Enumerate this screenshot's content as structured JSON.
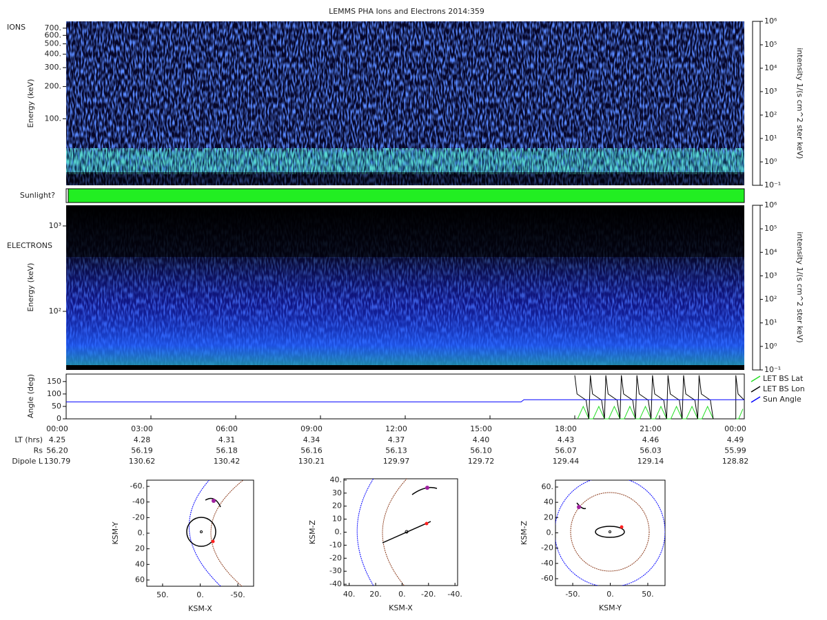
{
  "title": "LEMMS PHA Ions and Electrons  2014:359",
  "time_axis": {
    "xlim": [
      0,
      24
    ],
    "xticks": [
      {
        "value": 0,
        "label": "00:00"
      },
      {
        "value": 3,
        "label": "03:00"
      },
      {
        "value": 6,
        "label": "06:00"
      },
      {
        "value": 9,
        "label": "09:00"
      },
      {
        "value": 12,
        "label": "12:00"
      },
      {
        "value": 15,
        "label": "15:00"
      },
      {
        "value": 18,
        "label": "18:00"
      },
      {
        "value": 21,
        "label": "21:00"
      },
      {
        "value": 24,
        "label": "00:00"
      }
    ]
  },
  "ions": {
    "label": "IONS",
    "ylabel": "Energy (keV)",
    "log": true,
    "ylim": [
      24,
      810
    ],
    "yticks": [
      {
        "value": 100,
        "label": "100."
      },
      {
        "value": 200,
        "label": "200."
      },
      {
        "value": 300,
        "label": "300."
      },
      {
        "value": 400,
        "label": "400."
      },
      {
        "value": 500,
        "label": "500."
      },
      {
        "value": 600,
        "label": "600."
      },
      {
        "value": 700,
        "label": "700."
      }
    ]
  },
  "sunlight": {
    "label": "Sunlight?"
  },
  "electrons": {
    "label": "ELECTRONS",
    "ylabel": "Energy (keV)",
    "log": true,
    "ylim": [
      20.6,
      1745
    ],
    "yticks": [
      {
        "value": 100,
        "label": "10²"
      },
      {
        "value": 1000,
        "label": "10³"
      }
    ]
  },
  "colorbar": {
    "title": "intensity 1/(s cm^2 ster keV)",
    "log": true,
    "ylim": [
      0.1,
      1000000
    ],
    "yticks": [
      {
        "value": 0.1,
        "label": "10⁻¹"
      },
      {
        "value": 1,
        "label": "10⁰"
      },
      {
        "value": 10,
        "label": "10¹"
      },
      {
        "value": 100,
        "label": "10²"
      },
      {
        "value": 1000,
        "label": "10³"
      },
      {
        "value": 10000,
        "label": "10⁴"
      },
      {
        "value": 100000,
        "label": "10⁵"
      },
      {
        "value": 1000000,
        "label": "10⁶"
      }
    ]
  },
  "angle": {
    "type": "line",
    "ylabel": "Angle (deg)",
    "ylim": [
      0,
      180
    ],
    "yticks": [
      0,
      50,
      100,
      150
    ],
    "series": [
      {
        "name": "LET BS Lat",
        "color": "#22dd22",
        "x": [
          18.1,
          18.3,
          18.5,
          18.65,
          18.85,
          19.05,
          19.2,
          19.4,
          19.6,
          19.75,
          19.95,
          20.15,
          20.3,
          20.5,
          20.7,
          20.85,
          21.05,
          21.25,
          21.4,
          21.6,
          21.8,
          21.95,
          22.15,
          22.35,
          22.5,
          22.7,
          22.9,
          23.8,
          23.95
        ],
        "values": [
          0,
          50,
          0,
          0,
          50,
          0,
          0,
          50,
          0,
          0,
          50,
          0,
          0,
          50,
          0,
          0,
          50,
          0,
          0,
          50,
          0,
          0,
          50,
          0,
          0,
          50,
          0,
          0,
          40
        ]
      },
      {
        "name": "LET BS Lon",
        "color": "#000000",
        "x": [
          18,
          18.08,
          18.4,
          18.5,
          18.55,
          18.63,
          18.95,
          19.05,
          19.1,
          19.18,
          19.5,
          19.6,
          19.65,
          19.73,
          20.05,
          20.15,
          20.2,
          20.28,
          20.6,
          20.7,
          20.75,
          20.83,
          21.15,
          21.25,
          21.3,
          21.38,
          21.7,
          21.8,
          21.85,
          21.93,
          22.25,
          22.35,
          22.4,
          22.48,
          22.8,
          22.9,
          23.7,
          23.7,
          23.78,
          24
        ],
        "values": [
          175,
          100,
          75,
          0,
          175,
          100,
          75,
          0,
          175,
          100,
          75,
          0,
          175,
          100,
          75,
          0,
          175,
          100,
          75,
          0,
          175,
          100,
          75,
          0,
          175,
          100,
          75,
          0,
          175,
          100,
          75,
          0,
          175,
          100,
          75,
          0,
          0,
          175,
          100,
          75
        ]
      },
      {
        "name": "Sun Angle",
        "color": "#0000ff",
        "x": [
          0,
          16.1,
          16.2,
          24
        ],
        "values": [
          68,
          68,
          77,
          77
        ]
      }
    ]
  },
  "ephemeris": {
    "rows": [
      {
        "label": "LT (hrs)",
        "values": [
          "4.25",
          "4.28",
          "4.31",
          "4.34",
          "4.37",
          "4.40",
          "4.43",
          "4.46",
          "4.49"
        ]
      },
      {
        "label": "Rs",
        "values": [
          "56.20",
          "56.19",
          "56.18",
          "56.16",
          "56.13",
          "56.10",
          "56.07",
          "56.03",
          "55.99"
        ]
      },
      {
        "label": "Dipole L",
        "values": [
          "130.79",
          "130.62",
          "130.42",
          "130.21",
          "129.97",
          "129.72",
          "129.44",
          "129.14",
          "128.82"
        ]
      }
    ]
  },
  "orbits": [
    {
      "xlabel": "KSM-X",
      "ylabel": "KSM-Y",
      "xlim": [
        71,
        -71
      ],
      "ylim": [
        68,
        -68
      ],
      "xticks": [
        {
          "value": 50,
          "label": "50."
        },
        {
          "value": 0,
          "label": "0."
        },
        {
          "value": -50,
          "label": "-50."
        }
      ],
      "yticks": [
        {
          "value": -60,
          "label": "-60."
        },
        -40,
        -20,
        {
          "value": 0,
          "label": "0."
        },
        20,
        40,
        60
      ]
    },
    {
      "xlabel": "KSM-X",
      "ylabel": "KSM-Z",
      "xlim": [
        44,
        -42
      ],
      "ylim": [
        -41,
        41
      ],
      "xticks": [
        {
          "value": 40,
          "label": "40."
        },
        {
          "value": 20,
          "label": "20."
        },
        {
          "value": 0,
          "label": "0."
        },
        {
          "value": -20,
          "label": "-20."
        },
        {
          "value": -40,
          "label": "-40."
        }
      ],
      "yticks": [
        {
          "value": 40,
          "label": "40."
        },
        30,
        20,
        10,
        {
          "value": 0,
          "label": "0."
        },
        -10,
        -20,
        -30,
        -40
      ]
    },
    {
      "xlabel": "KSM-Y",
      "ylabel": "KSM-Z",
      "xlim": [
        -73,
        73
      ],
      "ylim": [
        -69,
        69
      ],
      "xticks": [
        {
          "value": -50,
          "label": "-50."
        },
        {
          "value": 0,
          "label": "0."
        },
        {
          "value": 50,
          "label": "50."
        }
      ],
      "yticks": [
        {
          "value": 60,
          "label": "60."
        },
        40,
        20,
        {
          "value": 0,
          "label": "0."
        },
        -20,
        -40,
        -60
      ]
    }
  ]
}
